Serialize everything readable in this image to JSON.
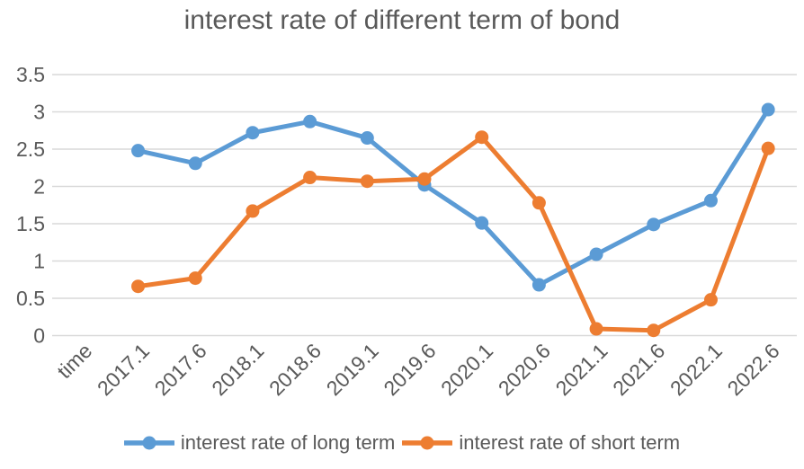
{
  "chart_data": {
    "type": "line",
    "title": "interest rate of different term of bond",
    "xlabel": "",
    "ylabel": "",
    "categories": [
      "time",
      "2017.1",
      "2017.6",
      "2018.1",
      "2018.6",
      "2019.1",
      "2019.6",
      "2020.1",
      "2020.6",
      "2021.1",
      "2021.6",
      "2022.1",
      "2022.6"
    ],
    "series": [
      {
        "name": "interest rate of long term",
        "color": "#5B9BD5",
        "values": [
          null,
          2.48,
          2.31,
          2.72,
          2.87,
          2.65,
          2.02,
          1.51,
          0.68,
          1.09,
          1.49,
          1.81,
          3.03
        ]
      },
      {
        "name": "interest rate of short term",
        "color": "#ED7D31",
        "values": [
          null,
          0.66,
          0.77,
          1.67,
          2.12,
          2.07,
          2.1,
          2.66,
          1.78,
          0.09,
          0.07,
          0.48,
          2.51
        ]
      }
    ],
    "ylim": [
      0,
      3.5
    ],
    "yticks": [
      0,
      0.5,
      1,
      1.5,
      2,
      2.5,
      3,
      3.5
    ],
    "ytick_labels": [
      "0",
      "0.5",
      "1",
      "1.5",
      "2",
      "2.5",
      "3",
      "3.5"
    ],
    "grid": true,
    "legend_position": "bottom"
  },
  "style": {
    "grid_color": "#D9D9D9",
    "text_color": "#595959",
    "line_width": 5,
    "marker_radius": 7.5
  }
}
